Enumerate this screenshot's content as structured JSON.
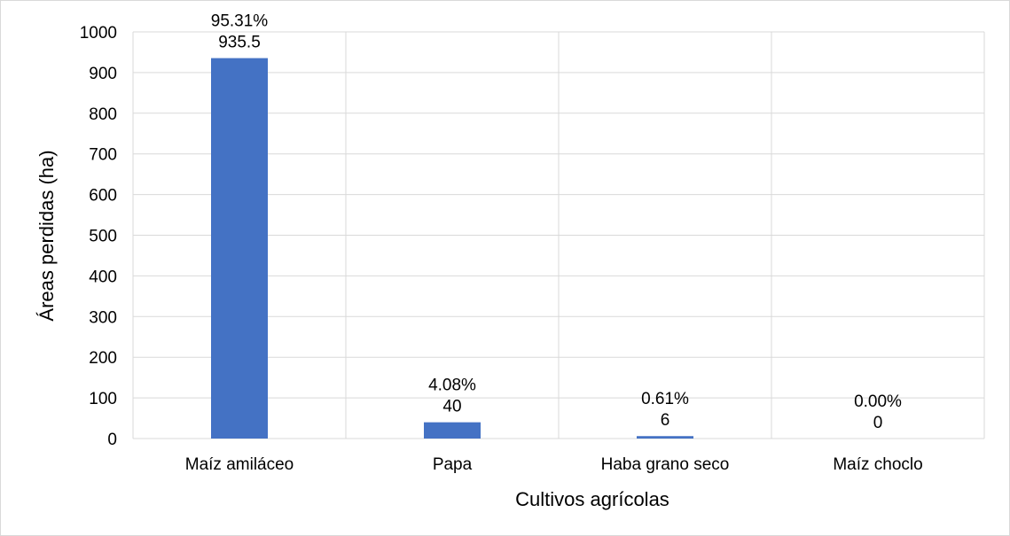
{
  "chart_data": {
    "type": "bar",
    "title": "",
    "xlabel": "Cultivos agrícolas",
    "ylabel": "Áreas perdidas (ha)",
    "categories": [
      "Maíz amiláceo",
      "Papa",
      "Haba grano seco",
      "Maíz choclo"
    ],
    "values": [
      935.5,
      40,
      6,
      0
    ],
    "percent_labels": [
      "95.31%",
      "4.08%",
      "0.61%",
      "0.00%"
    ],
    "value_labels": [
      "935.5",
      "40",
      "6",
      "0"
    ],
    "ylim": [
      0,
      1000
    ],
    "yticks": [
      "0",
      "100",
      "200",
      "300",
      "400",
      "500",
      "600",
      "700",
      "800",
      "900",
      "1000"
    ],
    "grid": true,
    "legend": "none",
    "bar_color": "#4472c4",
    "grid_color": "#d9d9d9"
  }
}
